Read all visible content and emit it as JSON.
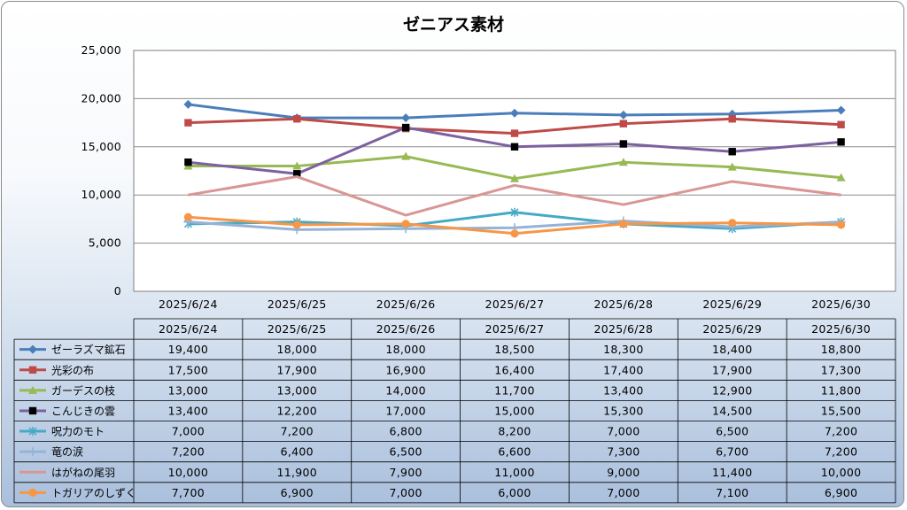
{
  "chart_data": {
    "type": "line",
    "title": "ゼニアス素材",
    "categories": [
      "2025/6/24",
      "2025/6/25",
      "2025/6/26",
      "2025/6/27",
      "2025/6/28",
      "2025/6/29",
      "2025/6/30"
    ],
    "ylim": [
      0,
      25000
    ],
    "y_ticks": [
      "0",
      "5,000",
      "10,000",
      "15,000",
      "20,000",
      "25,000"
    ],
    "grid": "horizontal",
    "legend": "data-table",
    "series": [
      {
        "name": "ゼーラズマ鉱石",
        "color": "#4a7ebb",
        "marker": "diamond",
        "values": [
          19400,
          18000,
          18000,
          18500,
          18300,
          18400,
          18800
        ],
        "labels": [
          "19,400",
          "18,000",
          "18,000",
          "18,500",
          "18,300",
          "18,400",
          "18,800"
        ]
      },
      {
        "name": "光彩の布",
        "color": "#be4b48",
        "marker": "square",
        "values": [
          17500,
          17900,
          16900,
          16400,
          17400,
          17900,
          17300
        ],
        "labels": [
          "17,500",
          "17,900",
          "16,900",
          "16,400",
          "17,400",
          "17,900",
          "17,300"
        ]
      },
      {
        "name": "ガーデスの枝",
        "color": "#98b954",
        "marker": "triangle",
        "values": [
          13000,
          13000,
          14000,
          11700,
          13400,
          12900,
          11800
        ],
        "labels": [
          "13,000",
          "13,000",
          "14,000",
          "11,700",
          "13,400",
          "12,900",
          "11,800"
        ]
      },
      {
        "name": "こんじきの雲",
        "color": "#7d60a0",
        "marker": "blacksquare",
        "values": [
          13400,
          12200,
          17000,
          15000,
          15300,
          14500,
          15500
        ],
        "labels": [
          "13,400",
          "12,200",
          "17,000",
          "15,000",
          "15,300",
          "14,500",
          "15,500"
        ]
      },
      {
        "name": "呪力のモト",
        "color": "#46aac5",
        "marker": "star",
        "values": [
          7000,
          7200,
          6800,
          8200,
          7000,
          6500,
          7200
        ],
        "labels": [
          "7,000",
          "7,200",
          "6,800",
          "8,200",
          "7,000",
          "6,500",
          "7,200"
        ]
      },
      {
        "name": "竜の涙",
        "color": "#95b3d7",
        "marker": "plus",
        "values": [
          7200,
          6400,
          6500,
          6600,
          7300,
          6700,
          7200
        ],
        "labels": [
          "7,200",
          "6,400",
          "6,500",
          "6,600",
          "7,300",
          "6,700",
          "7,200"
        ]
      },
      {
        "name": "はがねの尾羽",
        "color": "#d99694",
        "marker": "none",
        "values": [
          10000,
          11900,
          7900,
          11000,
          9000,
          11400,
          10000
        ],
        "labels": [
          "10,000",
          "11,900",
          "7,900",
          "11,000",
          "9,000",
          "11,400",
          "10,000"
        ]
      },
      {
        "name": "トガリアのしずく",
        "color": "#f79646",
        "marker": "circle",
        "values": [
          7700,
          6900,
          7000,
          6000,
          7000,
          7100,
          6900
        ],
        "labels": [
          "7,700",
          "6,900",
          "7,000",
          "6,000",
          "7,000",
          "7,100",
          "6,900"
        ]
      }
    ]
  }
}
